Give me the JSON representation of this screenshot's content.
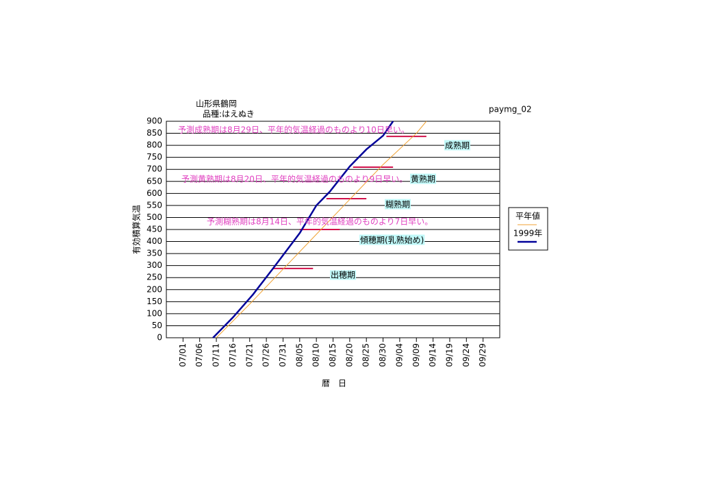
{
  "chart_data": {
    "type": "line",
    "title": "山形県鶴岡",
    "subtitle": "品種:はえぬき",
    "code": "paymg_02",
    "xlabel": "暦　日",
    "ylabel": "有効積算気温",
    "xlim": [
      "06/26",
      "10/04"
    ],
    "xticks": [
      "07/01",
      "07/06",
      "07/11",
      "07/16",
      "07/21",
      "07/26",
      "07/31",
      "08/05",
      "08/10",
      "08/15",
      "08/20",
      "08/25",
      "08/30",
      "09/04",
      "09/09",
      "09/14",
      "09/19",
      "09/24",
      "09/29"
    ],
    "ylim": [
      0,
      900
    ],
    "yticks": [
      0,
      50,
      100,
      150,
      200,
      250,
      300,
      350,
      400,
      450,
      500,
      550,
      600,
      650,
      700,
      750,
      800,
      850,
      900
    ],
    "grid": true,
    "series": [
      {
        "name": "平年値",
        "color": "#f0a030",
        "x": [
          "07/11",
          "07/21",
          "07/31",
          "08/10",
          "08/20",
          "08/30",
          "09/09",
          "09/12"
        ],
        "values": [
          0,
          140,
          285,
          430,
          575,
          720,
          850,
          900
        ]
      },
      {
        "name": "1999年",
        "color": "#000099",
        "x": [
          "07/10",
          "07/16",
          "07/22",
          "07/28",
          "08/05",
          "08/10",
          "08/14",
          "08/20",
          "08/25",
          "08/30",
          "09/02"
        ],
        "values": [
          0,
          85,
          180,
          288,
          435,
          550,
          607,
          712,
          783,
          840,
          900
        ]
      }
    ],
    "stages": {
      "color": "#d0104a",
      "items": [
        {
          "label": "出穂期",
          "value": 288,
          "start": "07/28",
          "end": "08/09"
        },
        {
          "label": "傾穂期(乳熟始め)",
          "value": 450,
          "start": "08/05",
          "end": "08/17"
        },
        {
          "label": "糊熟期",
          "value": 578,
          "start": "08/13",
          "end": "08/25"
        },
        {
          "label": "黄熟期",
          "value": 709,
          "start": "08/21",
          "end": "09/02"
        },
        {
          "label": "成熟期",
          "value": 837,
          "start": "08/31",
          "end": "09/12"
        }
      ]
    },
    "annotations": [
      "予測成熟期は8月29日、平年的気温経過のものより10日早い。",
      "予測黄熟期は8月20日、平年的気温経過のものより9日早い。",
      "予測糊熟期は8月14日、平年的気温経過のものより7日早い。"
    ]
  }
}
